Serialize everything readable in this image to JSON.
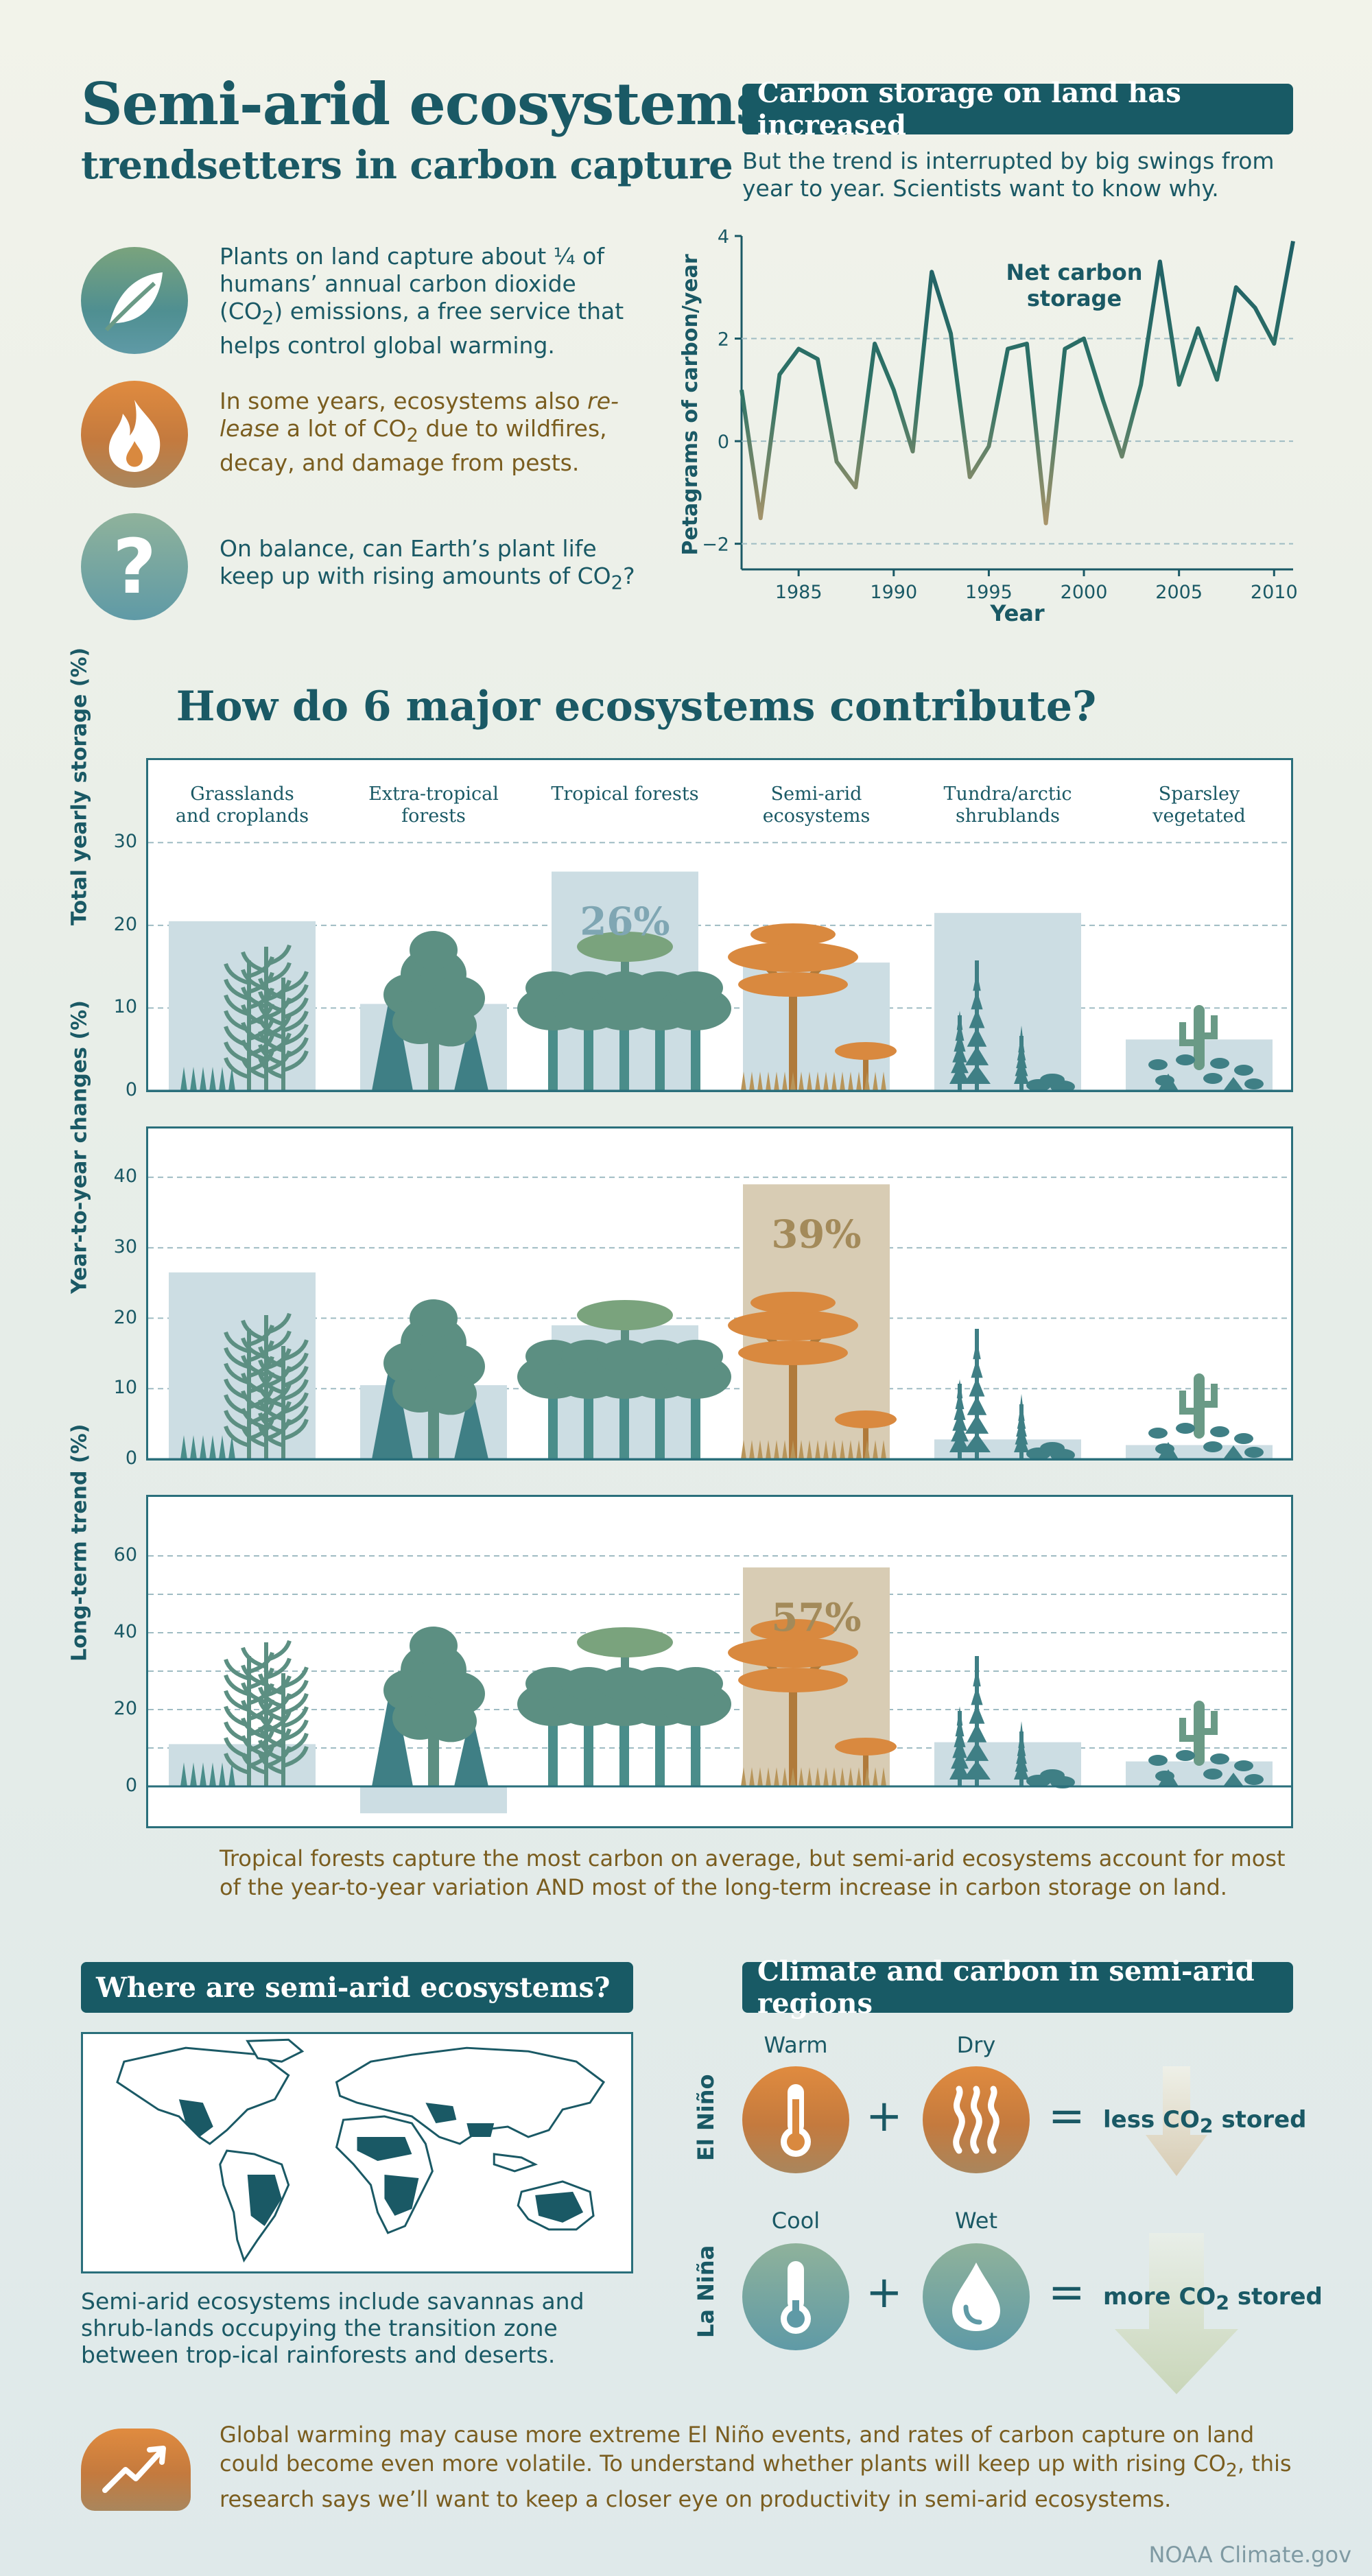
{
  "header": {
    "title_line1": "Semi-arid ecosystems:",
    "title_line2": "trendsetters in carbon capture"
  },
  "intro": {
    "items": [
      {
        "icon": "leaf-icon",
        "text_html": "Plants on land capture about ¼ of humans’ annual carbon dioxide (CO<sub>2</sub>) emissions, a free service that helps control global warming."
      },
      {
        "icon": "fire-icon",
        "text_html": "In some years, ecosystems also <i>re-lease</i> a lot of CO<sub>2</sub> due to wildfires, decay, and damage from pests."
      },
      {
        "icon": "question-icon",
        "text_html": "On balance, can Earth’s plant life keep up with rising amounts of CO<sub>2</sub>?"
      }
    ]
  },
  "carbon_chart": {
    "banner": "Carbon storage on land has increased",
    "description": "But the trend is interrupted by big swings from year to year. Scientists want to know why.",
    "series_label": "Net carbon storage",
    "ylabel": "Petagrams of carbon/year",
    "xlabel": "Year"
  },
  "ecosystems_section": {
    "heading": "How do 6 major ecosystems contribute?",
    "caption": "Tropical forests capture the most carbon on average, but semi-arid ecosystems account for most of the year-to-year variation AND most of the long-term increase in carbon storage on land."
  },
  "map_section": {
    "banner": "Where are semi-arid ecosystems?",
    "description": "Semi-arid ecosystems include savannas and shrub-lands occupying the transition zone between trop-ical rainforests and deserts."
  },
  "climate_section": {
    "banner": "Climate and carbon in semi-arid regions",
    "el_nino": {
      "label": "El Niño",
      "a_label": "Warm",
      "b_label": "Dry",
      "result_html": "less CO<sub>2</sub> stored"
    },
    "la_nina": {
      "label": "La Niña",
      "a_label": "Cool",
      "b_label": "Wet",
      "result_html": "more CO<sub>2</sub> stored"
    },
    "plus": "+",
    "equals": "="
  },
  "conclusion": {
    "text_html": "Global warming may cause more extreme El Niño events, and rates of carbon capture on land could become even more volatile. To understand whether plants will keep up with rising CO<sub>2</sub>, this research says we’ll want to keep a closer eye on productivity in semi-arid ecosystems."
  },
  "footer": {
    "credit": "NOAA Climate.gov"
  },
  "colors": {
    "teal": "#185a65",
    "orange": "#d9893f",
    "bar_blue": "#ccdde3",
    "bar_tan": "#d8ccb4",
    "line": "#2d6f6a"
  },
  "chart_data": [
    {
      "type": "line",
      "title": "Carbon storage on land has increased",
      "xlabel": "Year",
      "ylabel": "Petagrams of carbon/year",
      "xlim": [
        1982,
        2011
      ],
      "ylim": [
        -2.5,
        4
      ],
      "xticks": [
        1985,
        1990,
        1995,
        2000,
        2005,
        2010
      ],
      "yticks": [
        -2,
        0,
        2,
        4
      ],
      "series": [
        {
          "name": "Net carbon storage",
          "x": [
            1982,
            1983,
            1984,
            1985,
            1986,
            1987,
            1988,
            1989,
            1990,
            1991,
            1992,
            1993,
            1994,
            1995,
            1996,
            1997,
            1998,
            1999,
            2000,
            2001,
            2002,
            2003,
            2004,
            2005,
            2006,
            2007,
            2008,
            2009,
            2010,
            2011
          ],
          "y": [
            1.0,
            -1.5,
            1.3,
            1.8,
            1.6,
            -0.4,
            -0.9,
            1.9,
            1.0,
            -0.2,
            3.3,
            2.1,
            -0.7,
            -0.1,
            1.8,
            1.9,
            -1.6,
            1.8,
            2.0,
            0.8,
            -0.3,
            1.1,
            3.5,
            1.1,
            2.2,
            1.2,
            3.0,
            2.6,
            1.9,
            3.9
          ]
        }
      ]
    },
    {
      "type": "bar",
      "ylabel": "Total yearly storage (%)",
      "categories": [
        "Grasslands and croplands",
        "Extra-tropical forests",
        "Tropical forests",
        "Semi-arid ecosystems",
        "Tundra/arctic shrublands",
        "Sparsley vegetated"
      ],
      "values": [
        20.5,
        10.5,
        26.5,
        15.5,
        21.5,
        6.2
      ],
      "highlight_index": 2,
      "highlight_label": "26%",
      "ylim": [
        0,
        35
      ],
      "yticks": [
        0,
        10,
        20,
        30
      ]
    },
    {
      "type": "bar",
      "ylabel": "Year-to-year changes (%)",
      "categories": [
        "Grasslands and croplands",
        "Extra-tropical forests",
        "Tropical forests",
        "Semi-arid ecosystems",
        "Tundra/arctic shrublands",
        "Sparsley vegetated"
      ],
      "values": [
        26.5,
        10.5,
        19,
        39,
        2.8,
        2
      ],
      "highlight_index": 3,
      "highlight_label": "39%",
      "ylim": [
        0,
        44
      ],
      "yticks": [
        0,
        10,
        20,
        30,
        40
      ]
    },
    {
      "type": "bar",
      "ylabel": "Long-term trend (%)",
      "categories": [
        "Grasslands and croplands",
        "Extra-tropical forests",
        "Tropical forests",
        "Semi-arid ecosystems",
        "Tundra/arctic shrublands",
        "Sparsley vegetated"
      ],
      "values": [
        11,
        -7,
        0,
        57,
        11.5,
        6.5
      ],
      "highlight_index": 3,
      "highlight_label": "57%",
      "ylim": [
        -9,
        70
      ],
      "yticks": [
        0,
        20,
        40,
        60
      ]
    }
  ]
}
